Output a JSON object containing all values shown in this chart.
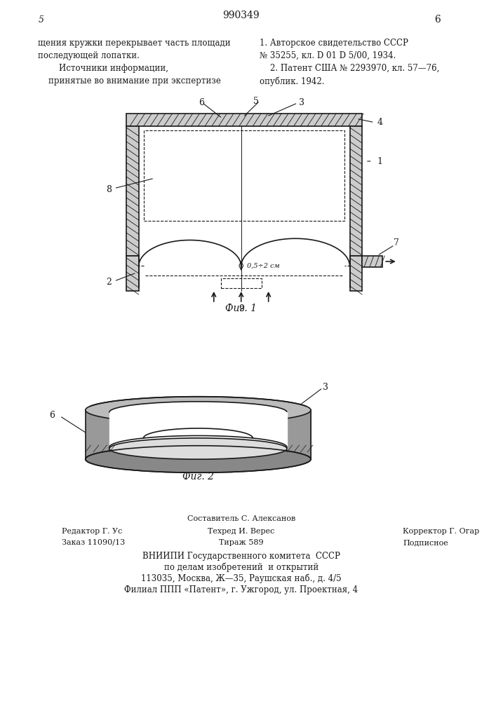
{
  "bg_color": "#ffffff",
  "page_number_left": "5",
  "page_number_right": "6",
  "page_center_number": "990349",
  "text_left": "щения кружки перекрывает часть площади\nпоследующей лопатки.\n        Источники информации,\n    принятые во внимание при экспертизе",
  "text_right": "1. Авторское свидетельство СССР\n№ 35255, кл. D 01 D 5/00, 1934.\n    2. Патент США № 2293970, кл. 57—76,\nопублик. 1942.",
  "fig1_label": "Фиг. 1",
  "fig2_label": "Фиг. 2",
  "footer_line1": "Составитель С. Алексанов",
  "footer_line2_col1": "Редактор Г. Ус",
  "footer_line2_col2": "Техред И. Верес",
  "footer_line2_col3": "Корректор Г. Огар",
  "footer_line3_col1": "Заказ 11090/13",
  "footer_line3_col2": "Тираж 589",
  "footer_line3_col3": "Подписное",
  "footer_vniip1": "ВНИИПИ Государственного комитета  СССР",
  "footer_vniip2": "по делам изобретений  и открытий",
  "footer_vniip3": "113035, Москва, Ж—35, Раушская наб., д. 4/5",
  "footer_vniip4": "Филиал ППП «Патент», г. Ужгород, ул. Проектная, 4"
}
